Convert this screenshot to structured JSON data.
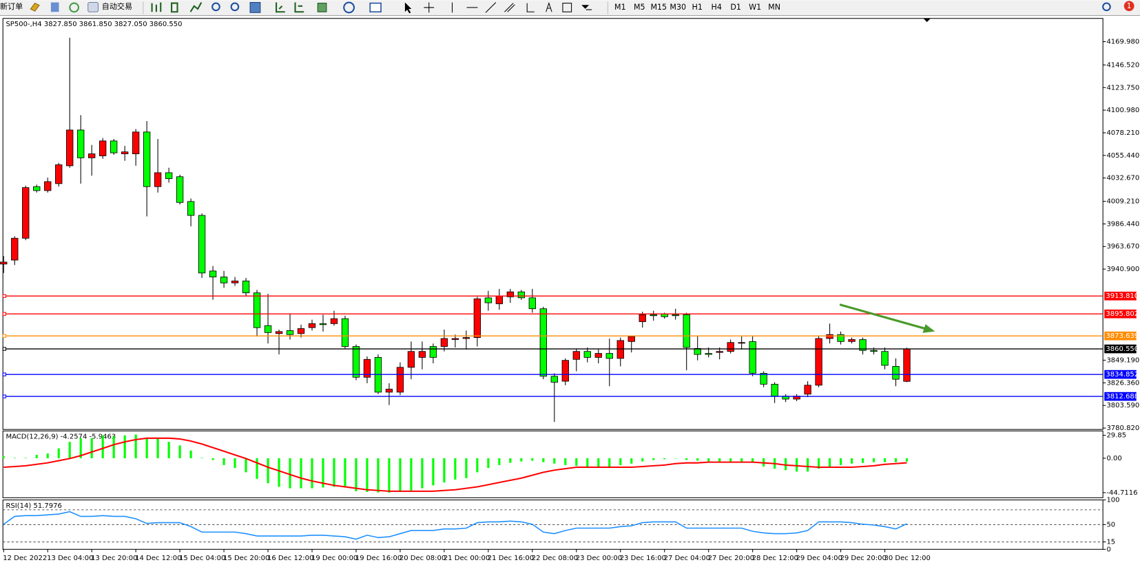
{
  "toolbar": {
    "new_order": "新订单",
    "auto_trading": "自动交易",
    "timeframes": [
      "M1",
      "M5",
      "M15",
      "M30",
      "H1",
      "H4",
      "D1",
      "W1",
      "MN"
    ],
    "notifications": "1"
  },
  "chart_data": [
    {
      "type": "candlestick",
      "title": "SP500-,H4  3827.850 3861.850 3827.050 3860.550",
      "bull_color": "#ff0000",
      "bear_color": "#00ff00",
      "categories": [
        "12 Dec 2022",
        null,
        null,
        null,
        "13 Dec 04:00",
        null,
        null,
        null,
        "13 Dec 20:00",
        null,
        null,
        null,
        "14 Dec 12:00",
        null,
        null,
        null,
        "15 Dec 04:00",
        null,
        null,
        null,
        "15 Dec 20:00",
        null,
        null,
        null,
        "16 Dec 12:00",
        null,
        null,
        null,
        "19 Dec 00:00",
        null,
        null,
        null,
        "19 Dec 16:00",
        null,
        null,
        null,
        "20 Dec 08:00",
        null,
        null,
        null,
        "21 Dec 00:00",
        null,
        null,
        null,
        "21 Dec 16:00",
        null,
        null,
        null,
        "22 Dec 08:00",
        null,
        null,
        null,
        "23 Dec 00:00",
        null,
        null,
        null,
        "23 Dec 16:00",
        null,
        null,
        null,
        "27 Dec 04:00",
        null,
        null,
        null,
        "27 Dec 20:00",
        null,
        null,
        null,
        "28 Dec 12:00",
        null,
        null,
        null,
        "29 Dec 04:00",
        null,
        null,
        null,
        "29 Dec 20:00",
        null,
        null,
        null,
        "30 Dec 12:00",
        null,
        null
      ],
      "open": [
        3946,
        3950,
        3972,
        4024,
        4020,
        4027,
        4045,
        4081,
        4053,
        4055,
        4070,
        4057,
        4057,
        4079,
        4024,
        4038,
        4034,
        4009,
        3995,
        3939,
        3933,
        3927,
        3929,
        3917,
        3884,
        3876,
        3879,
        3876,
        3882,
        3886,
        3886,
        3891,
        3863,
        3832,
        3852,
        3817,
        3817,
        3842,
        3852,
        3863,
        3863,
        3870,
        3871,
        3872,
        3912,
        3906,
        3913,
        3918,
        3912,
        3901,
        3833,
        3828,
        3850,
        3858,
        3852,
        3856,
        3851,
        3868,
        3888,
        3895,
        3896,
        3895,
        3895,
        3861,
        3856,
        3857,
        3858,
        3867,
        3868,
        3836,
        3825,
        3813,
        3810,
        3815,
        3824,
        3871,
        3875,
        3868,
        3870,
        3859,
        3858,
        3843,
        3827.85
      ],
      "high": [
        3954,
        3974,
        4025,
        4026,
        4033,
        4048,
        4174,
        4096,
        4066,
        4073,
        4072,
        4065,
        4082,
        4090,
        4072,
        4043,
        4036,
        4012,
        3997,
        3944,
        3939,
        3933,
        3932,
        3920,
        3916,
        3880,
        3896,
        3885,
        3890,
        3895,
        3899,
        3894,
        3865,
        3853,
        3855,
        3826,
        3847,
        3868,
        3868,
        3866,
        3880,
        3875,
        3879,
        3913,
        3919,
        3921,
        3921,
        3920,
        3921,
        3903,
        3836,
        3851,
        3861,
        3862,
        3860,
        3871,
        3872,
        3874,
        3898,
        3899,
        3897,
        3901,
        3897,
        3874,
        3862,
        3862,
        3870,
        3873,
        3874,
        3838,
        3827,
        3815,
        3815,
        3828,
        3874,
        3886,
        3878,
        3872,
        3872,
        3862,
        3862,
        3851,
        3861.85
      ],
      "low": [
        3937,
        3945,
        3970,
        4018,
        4018,
        4024,
        4043,
        4027,
        4035,
        4052,
        4056,
        4050,
        4045,
        3994,
        4018,
        4028,
        4006,
        3984,
        3932,
        3910,
        3922,
        3924,
        3914,
        3873,
        3866,
        3855,
        3870,
        3872,
        3879,
        3878,
        3884,
        3861,
        3829,
        3826,
        3815,
        3804,
        3814,
        3830,
        3840,
        3846,
        3858,
        3862,
        3860,
        3863,
        3899,
        3900,
        3907,
        3910,
        3897,
        3830,
        3787,
        3824,
        3838,
        3847,
        3846,
        3823,
        3843,
        3857,
        3882,
        3889,
        3891,
        3890,
        3839,
        3849,
        3852,
        3850,
        3856,
        3860,
        3833,
        3822,
        3806,
        3807,
        3808,
        3812,
        3822,
        3866,
        3865,
        3866,
        3855,
        3855,
        3840,
        3823,
        3827.05
      ],
      "close": [
        3948,
        3972,
        4023,
        4020,
        4029,
        4046,
        4081,
        4053,
        4057,
        4070,
        4058,
        4059,
        4079,
        4024,
        4038,
        4032,
        4008,
        3995,
        3937,
        3933,
        3927,
        3929,
        3917,
        3882,
        3877,
        3878,
        3875,
        3881,
        3886,
        3885,
        3891,
        3863,
        3832,
        3850,
        3817,
        3820,
        3842,
        3858,
        3858,
        3852,
        3871,
        3871,
        3872,
        3911,
        3907,
        3914,
        3918,
        3912,
        3901,
        3833,
        3827,
        3849,
        3858,
        3852,
        3856,
        3851,
        3869,
        3873,
        3895,
        3894,
        3893,
        3894,
        3862,
        3855,
        3855,
        3858,
        3867,
        3867,
        3836,
        3825,
        3813,
        3810,
        3813,
        3824,
        3871,
        3875,
        3868,
        3870,
        3859,
        3858,
        3844,
        3830,
        3860.55
      ],
      "ylim": [
        3779.4,
        4193.4
      ],
      "yticks": [
        {
          "value": 4169.98,
          "label": "4169.980"
        },
        {
          "value": 4146.52,
          "label": "4146.520"
        },
        {
          "value": 4123.75,
          "label": "4123.750"
        },
        {
          "value": 4100.98,
          "label": "4100.980"
        },
        {
          "value": 4078.21,
          "label": "4078.210"
        },
        {
          "value": 4055.44,
          "label": "4055.440"
        },
        {
          "value": 4032.67,
          "label": "4032.670"
        },
        {
          "value": 4009.21,
          "label": "4009.210"
        },
        {
          "value": 3986.44,
          "label": "3986.440"
        },
        {
          "value": 3963.67,
          "label": "3963.670"
        },
        {
          "value": 3940.9,
          "label": "3940.900"
        },
        {
          "value": 3849.19,
          "label": "3849.190"
        },
        {
          "value": 3826.36,
          "label": "3826.360"
        },
        {
          "value": 3803.59,
          "label": "3803.590"
        },
        {
          "value": 3780.82,
          "label": "3780.820"
        }
      ],
      "hlines": [
        {
          "value": 3913.81,
          "label": "3913.810",
          "color": "#ff0000"
        },
        {
          "value": 3895.802,
          "label": "3895.802",
          "color": "#ff0000"
        },
        {
          "value": 3873.639,
          "label": "3873.639",
          "color": "#ff8c00"
        },
        {
          "value": 3860.55,
          "label": "3860.550",
          "color": "#000000"
        },
        {
          "value": 3834.852,
          "label": "3834.852",
          "color": "#0000ff"
        },
        {
          "value": 3812.688,
          "label": "3812.688",
          "color": "#0000ff"
        }
      ]
    },
    {
      "type": "macd",
      "title": "MACD(12,26,9) -4.2574 -5.9463",
      "series": [
        {
          "name": "MACD",
          "color": "#00ff00",
          "values": [
            2.5,
            0.6,
            0.6,
            4.3,
            6.2,
            12.8,
            21.3,
            26.1,
            26.1,
            29.8,
            28.9,
            29.8,
            30.8,
            26.1,
            26.1,
            21.3,
            16.6,
            10.0,
            0.6,
            -2.3,
            -8.9,
            -12.6,
            -18.3,
            -26.8,
            -32.5,
            -37.2,
            -39.1,
            -39.1,
            -39.1,
            -38.1,
            -37.2,
            -38.1,
            -42.9,
            -43.8,
            -44.5,
            -44.7,
            -43.8,
            -41.9,
            -39.1,
            -35.3,
            -31.5,
            -27.7,
            -25.9,
            -18.3,
            -12.6,
            -8.9,
            -6.0,
            -4.1,
            -3.2,
            -5.1,
            -7.0,
            -8.9,
            -9.8,
            -10.8,
            -11.7,
            -11.7,
            -8.9,
            -7.0,
            -4.1,
            -2.3,
            -1.3,
            -0.4,
            -2.3,
            -3.2,
            -4.1,
            -4.1,
            -4.1,
            -4.1,
            -6.0,
            -10.8,
            -13.6,
            -15.5,
            -17.4,
            -17.4,
            -13.6,
            -10.8,
            -8.9,
            -7.0,
            -6.0,
            -5.1,
            -5.1,
            -5.1,
            -4.2574
          ]
        },
        {
          "name": "Signal",
          "color": "#ff0000",
          "values": [
            -11.7,
            -10.8,
            -9.8,
            -7.9,
            -6.0,
            -3.2,
            -0.4,
            3.4,
            8.1,
            12.8,
            17.6,
            21.3,
            24.2,
            26.1,
            26.1,
            26.1,
            25.1,
            22.3,
            18.5,
            13.8,
            9.1,
            4.3,
            -0.4,
            -6.0,
            -11.7,
            -16.4,
            -21.2,
            -25.9,
            -29.6,
            -32.5,
            -35.3,
            -37.2,
            -39.1,
            -41.0,
            -41.9,
            -42.9,
            -42.9,
            -42.9,
            -42.9,
            -42.9,
            -41.9,
            -41.0,
            -39.1,
            -37.2,
            -34.4,
            -31.5,
            -28.7,
            -25.9,
            -22.1,
            -18.3,
            -15.5,
            -13.6,
            -11.7,
            -11.7,
            -11.7,
            -11.7,
            -11.7,
            -11.7,
            -10.8,
            -9.8,
            -8.9,
            -7.0,
            -6.0,
            -6.0,
            -5.1,
            -5.1,
            -5.1,
            -5.1,
            -5.1,
            -6.0,
            -7.0,
            -8.9,
            -9.8,
            -10.8,
            -11.7,
            -11.7,
            -11.7,
            -11.7,
            -10.8,
            -9.8,
            -7.9,
            -7.0,
            -5.9463
          ]
        }
      ],
      "ylim": [
        -51.4,
        35.5
      ],
      "yticks": [
        29.85,
        {
          "value": 0,
          "label": "0.00"
        },
        -44.7116
      ]
    },
    {
      "type": "line",
      "title": "RSI(14) 51.7976",
      "series": [
        {
          "name": "RSI",
          "color": "#1e90ff",
          "values": [
            50.8,
            66.7,
            68.3,
            68.3,
            69.8,
            71.4,
            76.2,
            66.7,
            66.7,
            68.3,
            66.7,
            66.7,
            61.9,
            52.4,
            54.0,
            54.0,
            54.0,
            46.0,
            34.9,
            34.9,
            34.9,
            34.9,
            31.7,
            27.0,
            27.0,
            27.0,
            27.0,
            27.0,
            28.6,
            28.6,
            27.0,
            25.4,
            20.6,
            28.6,
            23.8,
            25.4,
            31.7,
            38.1,
            38.1,
            38.1,
            41.3,
            41.3,
            42.9,
            54.0,
            55.6,
            55.6,
            57.1,
            55.6,
            50.8,
            34.9,
            31.7,
            38.1,
            42.9,
            42.9,
            42.9,
            42.9,
            46.0,
            47.6,
            54.0,
            55.6,
            55.6,
            55.6,
            42.9,
            42.9,
            42.9,
            42.9,
            42.9,
            42.9,
            36.5,
            33.3,
            31.7,
            31.7,
            33.3,
            38.1,
            55.6,
            55.6,
            55.6,
            54.0,
            50.8,
            49.2,
            46.0,
            41.3,
            51.7976
          ]
        }
      ],
      "ylim": [
        0,
        100
      ],
      "yticks": [
        100,
        50,
        15,
        0
      ],
      "levels": [
        80,
        50,
        15
      ]
    }
  ]
}
